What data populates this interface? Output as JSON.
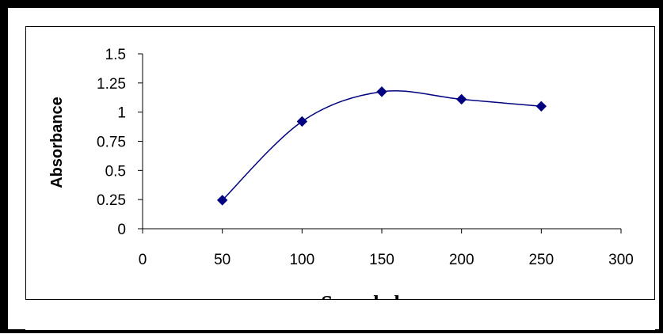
{
  "chart_data": {
    "type": "line",
    "xlabel": "Sample loop",
    "ylabel": "Absorbance",
    "xlim": [
      0,
      300
    ],
    "ylim": [
      0,
      1.5
    ],
    "x_ticks": [
      0,
      50,
      100,
      150,
      200,
      250,
      300
    ],
    "x_tick_labels": [
      "0",
      "50",
      "100",
      "150",
      "200",
      "250",
      "300"
    ],
    "y_ticks": [
      0,
      0.25,
      0.5,
      0.75,
      1,
      1.25,
      1.5
    ],
    "y_tick_labels": [
      "0",
      "0.25",
      "0.5",
      "0.75",
      "1",
      "1.25",
      "1.5"
    ],
    "grid": false,
    "legend": "none",
    "smooth": true,
    "line_color": "#000080",
    "marker": "diamond",
    "series": [
      {
        "x": [
          50,
          100,
          150,
          200,
          250
        ],
        "y": [
          0.245,
          0.92,
          1.175,
          1.11,
          1.05
        ]
      }
    ]
  }
}
